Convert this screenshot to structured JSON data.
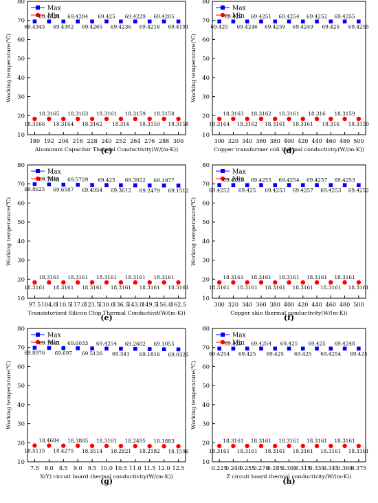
{
  "chart_data": [
    {
      "type": "scatter",
      "panel": "(c)",
      "xlabel": "Aluminum Capacitor Thermal Conductivity(W/(m·K))",
      "ylabel": "Working temperature(℃)",
      "xlim": [
        174,
        306
      ],
      "ylim": [
        10,
        80
      ],
      "xticks": [
        180,
        192,
        204,
        216,
        228,
        240,
        252,
        264,
        276,
        288,
        300
      ],
      "xtick_labels": [
        "180",
        "192",
        "204",
        "216",
        "228",
        "240",
        "252",
        "264",
        "276",
        "288",
        "300"
      ],
      "yticks": [
        10,
        20,
        30,
        40,
        50,
        60,
        70,
        80
      ],
      "ytick_labels": [
        "10",
        "20",
        "30",
        "40",
        "50",
        "60",
        "70",
        "80"
      ],
      "legend": "top-left",
      "grid": false,
      "x": [
        180,
        192,
        204,
        216,
        228,
        240,
        252,
        264,
        276,
        288,
        300
      ],
      "series": [
        {
          "name": "Max",
          "color": "#0000ff",
          "marker": "square",
          "values": [
            69.4345,
            69.4324,
            69.4302,
            69.4284,
            69.4265,
            69.425,
            69.4236,
            69.4229,
            69.4216,
            69.4205,
            69.4191
          ],
          "labels": [
            "69.4345",
            "69.4324",
            "69.4302",
            "69.4284",
            "69.4265",
            "69.425",
            "69.4236",
            "69.4229",
            "69.4216",
            "69.4205",
            "69.4191"
          ]
        },
        {
          "name": "Min",
          "color": "#ff0000",
          "marker": "circle",
          "values": [
            18.3166,
            18.3165,
            18.3164,
            18.3163,
            18.3162,
            18.3161,
            18.316,
            18.3159,
            18.3159,
            18.3158,
            18.3158
          ],
          "labels": [
            "18.3166",
            "18.3165",
            "18.3164",
            "18.3163",
            "18.3162",
            "18.3161",
            "18.316",
            "18.3159",
            "18.3159",
            "18.3158",
            "18.3158"
          ]
        }
      ]
    },
    {
      "type": "scatter",
      "panel": "(d)",
      "xlabel": "Copper transformer coil thermal conductivity(W/(m·K))",
      "ylabel": "Working temperature(℃)",
      "xlim": [
        290,
        510
      ],
      "ylim": [
        10,
        80
      ],
      "xticks": [
        300,
        320,
        340,
        360,
        380,
        400,
        420,
        440,
        460,
        480,
        500
      ],
      "xtick_labels": [
        "300",
        "320",
        "340",
        "360",
        "380",
        "400",
        "420",
        "440",
        "460",
        "480",
        "500"
      ],
      "yticks": [
        10,
        20,
        30,
        40,
        50,
        60,
        70,
        80
      ],
      "ytick_labels": [
        "10",
        "20",
        "30",
        "40",
        "50",
        "60",
        "70",
        "80"
      ],
      "legend": "top-left",
      "grid": false,
      "x": [
        300,
        320,
        340,
        360,
        380,
        400,
        420,
        440,
        460,
        480,
        500
      ],
      "series": [
        {
          "name": "Max",
          "color": "#0000ff",
          "marker": "square",
          "values": [
            69.425,
            69.425,
            69.4246,
            69.4251,
            69.4259,
            69.4254,
            69.4249,
            69.4252,
            69.425,
            69.4255,
            69.4255
          ],
          "labels": [
            "69.425",
            "69.425",
            "69.4246",
            "69.4251",
            "69.4259",
            "69.4254",
            "69.4249",
            "69.4252",
            "69.425",
            "69.4255",
            "69.4255"
          ]
        },
        {
          "name": "Min",
          "color": "#ff0000",
          "marker": "circle",
          "values": [
            18.3164,
            18.3163,
            18.3162,
            18.3162,
            18.3161,
            18.3161,
            18.3161,
            18.316,
            18.316,
            18.3159,
            18.3159
          ],
          "labels": [
            "18.3164",
            "18.3163",
            "18.3162",
            "18.3162",
            "18.3161",
            "18.3161",
            "18.3161",
            "18.316",
            "18.316",
            "18.3159",
            "18.3159"
          ]
        }
      ]
    },
    {
      "type": "scatter",
      "panel": "(e)",
      "xlabel": "Transistorized Silicon Chip Thermal Conductivit(W/(m·K))",
      "ylabel": "Working temperature(℃)",
      "xlim": [
        94.25,
        165.75
      ],
      "ylim": [
        10,
        80
      ],
      "xticks": [
        97.5,
        104,
        110.5,
        117,
        123.5,
        130,
        136.5,
        143,
        149.5,
        156,
        162.5
      ],
      "xtick_labels": [
        "97.5",
        "104.0",
        "110.5",
        "117.0",
        "123.5",
        "130.0",
        "136.5",
        "143.0",
        "149.5",
        "156.0",
        "162.5"
      ],
      "yticks": [
        10,
        20,
        30,
        40,
        50,
        60,
        70,
        80
      ],
      "ytick_labels": [
        "10",
        "20",
        "30",
        "40",
        "50",
        "60",
        "70",
        "80"
      ],
      "legend": "top-left",
      "grid": false,
      "x": [
        97.5,
        104,
        110.5,
        117,
        123.5,
        130,
        136.5,
        143,
        149.5,
        156,
        162.5
      ],
      "series": [
        {
          "name": "Max",
          "color": "#0000ff",
          "marker": "square",
          "values": [
            69.8625,
            69.7541,
            69.6587,
            69.5729,
            69.4954,
            69.425,
            69.3612,
            69.3022,
            69.2479,
            69.1977,
            69.1512
          ],
          "labels": [
            "69.8625",
            "69.7541",
            "69.6587",
            "69.5729",
            "69.4954",
            "69.425",
            "69.3612",
            "69.3022",
            "69.2479",
            "69.1977",
            "69.1512"
          ]
        },
        {
          "name": "Min",
          "color": "#ff0000",
          "marker": "circle",
          "values": [
            18.3161,
            18.3161,
            18.3161,
            18.3161,
            18.3161,
            18.3161,
            18.3161,
            18.3161,
            18.3161,
            18.3161,
            18.3161
          ],
          "labels": [
            "18.3161",
            "18.3161",
            "18.3161",
            "18.3161",
            "18.3161",
            "18.3161",
            "18.3161",
            "18.3161",
            "18.3161",
            "18.3161",
            "18.3161"
          ]
        }
      ]
    },
    {
      "type": "scatter",
      "panel": "(f)",
      "xlabel": "Copper skin thermal conductivity(W/(m·K))",
      "ylabel": "Working temperature(℃)",
      "xlim": [
        290,
        510
      ],
      "ylim": [
        10,
        80
      ],
      "xticks": [
        300,
        320,
        340,
        360,
        380,
        400,
        420,
        440,
        460,
        480,
        500
      ],
      "xtick_labels": [
        "300",
        "320",
        "340",
        "360",
        "380",
        "400",
        "420",
        "440",
        "460",
        "480",
        "500"
      ],
      "yticks": [
        10,
        20,
        30,
        40,
        50,
        60,
        70,
        80
      ],
      "ytick_labels": [
        "10",
        "20",
        "30",
        "40",
        "50",
        "60",
        "70",
        "80"
      ],
      "legend": "top-left",
      "grid": false,
      "x": [
        300,
        320,
        340,
        360,
        380,
        400,
        420,
        440,
        460,
        480,
        500
      ],
      "series": [
        {
          "name": "Max",
          "color": "#0000ff",
          "marker": "square",
          "values": [
            69.4252,
            69.4251,
            69.425,
            69.4255,
            69.4253,
            69.4254,
            69.4257,
            69.4257,
            69.4253,
            69.4253,
            69.4252
          ],
          "labels": [
            "69.4252",
            "69.4251",
            "69.425",
            "69.4255",
            "69.4253",
            "69.4254",
            "69.4257",
            "69.4257",
            "69.4253",
            "69.4253",
            "69.4252"
          ]
        },
        {
          "name": "Min",
          "color": "#ff0000",
          "marker": "circle",
          "values": [
            18.3161,
            18.3161,
            18.3161,
            18.3161,
            18.3161,
            18.3161,
            18.3161,
            18.3161,
            18.3161,
            18.3161,
            18.3161
          ],
          "labels": [
            "18.3161",
            "18.3161",
            "18.3161",
            "18.3161",
            "18.3161",
            "18.3161",
            "18.3161",
            "18.3161",
            "18.3161",
            "18.3161",
            "18.3161"
          ]
        }
      ]
    },
    {
      "type": "scatter",
      "panel": "(g)",
      "xlabel": "X(Y) circuit board thermal conductivity(W/(m·K))",
      "ylabel": "Working temperature(℃)",
      "xlim": [
        7.25,
        12.75
      ],
      "ylim": [
        10,
        80
      ],
      "xticks": [
        7.5,
        8,
        8.5,
        9,
        9.5,
        10,
        10.5,
        11,
        11.5,
        12,
        12.5
      ],
      "xtick_labels": [
        "7.5",
        "8.0",
        "8.5",
        "9.0",
        "9.5",
        "10.0",
        "10.5",
        "11.0",
        "11.5",
        "12.0",
        "12.5"
      ],
      "yticks": [
        10,
        20,
        30,
        40,
        50,
        60,
        70,
        80
      ],
      "ytick_labels": [
        "10",
        "20",
        "30",
        "40",
        "50",
        "60",
        "70",
        "80"
      ],
      "legend": "top-left",
      "grid": false,
      "x": [
        7.5,
        8,
        8.5,
        9,
        9.5,
        10,
        10.5,
        11,
        11.5,
        12,
        12.5
      ],
      "series": [
        {
          "name": "Max",
          "color": "#0000ff",
          "marker": "square",
          "values": [
            69.8976,
            69.7947,
            69.697,
            69.6033,
            69.5126,
            69.4254,
            69.341,
            69.2602,
            69.1816,
            69.1055,
            69.0325
          ],
          "labels": [
            "69.8976",
            "69.7947",
            "69.697",
            "69.6033",
            "69.5126",
            "69.4254",
            "69.341",
            "69.2602",
            "69.1816",
            "69.1055",
            "69.0325"
          ]
        },
        {
          "name": "Min",
          "color": "#ff0000",
          "marker": "circle",
          "values": [
            18.5115,
            18.4684,
            18.4275,
            18.3885,
            18.3514,
            18.3161,
            18.2821,
            18.2495,
            18.2182,
            18.1883,
            18.1596
          ],
          "labels": [
            "18.5115",
            "18.4684",
            "18.4275",
            "18.3885",
            "18.3514",
            "18.3161",
            "18.2821",
            "18.2495",
            "18.2182",
            "18.1883",
            "18.1596"
          ]
        }
      ]
    },
    {
      "type": "scatter",
      "panel": "(h)",
      "xlabel": "Z circuit board thermal conductivity(W/(m·K))",
      "ylabel": "Working temperature(℃)",
      "xlim": [
        0.2175,
        0.3825
      ],
      "ylim": [
        10,
        80
      ],
      "xticks": [
        0.225,
        0.24,
        0.255,
        0.27,
        0.285,
        0.3,
        0.315,
        0.33,
        0.345,
        0.36,
        0.375
      ],
      "xtick_labels": [
        "0.225",
        "0.240",
        "0.255",
        "0.270",
        "0.285",
        "0.300",
        "0.315",
        "0.330",
        "0.345",
        "0.360",
        "0.375"
      ],
      "yticks": [
        10,
        20,
        30,
        40,
        50,
        60,
        70,
        80
      ],
      "ytick_labels": [
        "10",
        "20",
        "30",
        "40",
        "50",
        "60",
        "70",
        "80"
      ],
      "legend": "top-left",
      "grid": false,
      "x": [
        0.225,
        0.24,
        0.255,
        0.27,
        0.285,
        0.3,
        0.315,
        0.33,
        0.345,
        0.36,
        0.375
      ],
      "series": [
        {
          "name": "Max",
          "color": "#0000ff",
          "marker": "square",
          "values": [
            69.4254,
            69.425,
            69.425,
            69.4254,
            69.425,
            69.425,
            69.425,
            69.425,
            69.4254,
            69.4248,
            69.425
          ],
          "labels": [
            "69.4254",
            "69.425",
            "69.425",
            "69.4254",
            "69.425",
            "69.425",
            "69.425",
            "69.425",
            "69.4254",
            "69.4248",
            "69.425"
          ]
        },
        {
          "name": "Min",
          "color": "#ff0000",
          "marker": "circle",
          "values": [
            18.3161,
            18.3161,
            18.3161,
            18.3161,
            18.3161,
            18.3161,
            18.3161,
            18.3161,
            18.3161,
            18.3161,
            18.3161
          ],
          "labels": [
            "18.3161",
            "18.3161",
            "18.3161",
            "18.3161",
            "18.3161",
            "18.3161",
            "18.3161",
            "18.3161",
            "18.3161",
            "18.3161",
            "18.3161"
          ]
        }
      ]
    }
  ]
}
